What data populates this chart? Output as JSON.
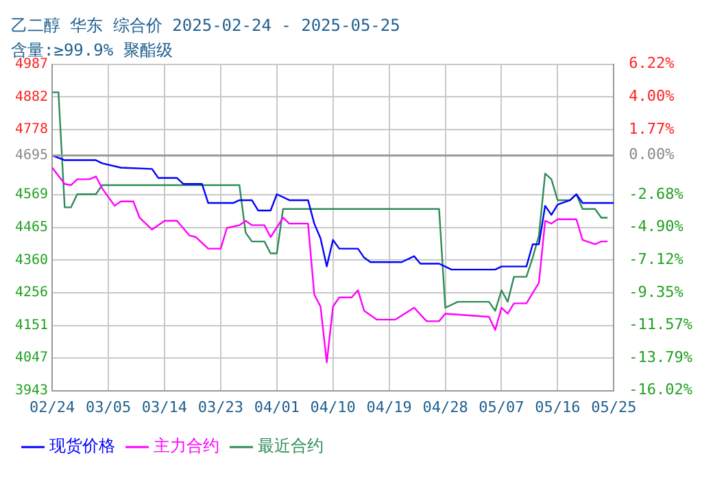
{
  "chart_data": {
    "type": "line",
    "title": "乙二醇 华东 综合价 2025-02-24 - 2025-05-25",
    "subtitle": "含量:≥99.9% 聚酯级",
    "xlim": [
      "2025-02-24",
      "2025-05-25"
    ],
    "xticks": [
      {
        "value": "2025-02-24",
        "label": "02/24"
      },
      {
        "value": "2025-03-05",
        "label": "03/05"
      },
      {
        "value": "2025-03-14",
        "label": "03/14"
      },
      {
        "value": "2025-03-23",
        "label": "03/23"
      },
      {
        "value": "2025-04-01",
        "label": "04/01"
      },
      {
        "value": "2025-04-10",
        "label": "04/10"
      },
      {
        "value": "2025-04-19",
        "label": "04/19"
      },
      {
        "value": "2025-04-28",
        "label": "04/28"
      },
      {
        "value": "2025-05-07",
        "label": "05/07"
      },
      {
        "value": "2025-05-16",
        "label": "05/16"
      },
      {
        "value": "2025-05-25",
        "label": "05/25"
      }
    ],
    "ylim": [
      3943,
      4987
    ],
    "yticks": [
      3943,
      4047,
      4151,
      4256,
      4360,
      4465,
      4569,
      4695,
      4778,
      4882,
      4987
    ],
    "y2lim": [
      -16.02,
      6.22
    ],
    "y2ticks": [
      {
        "value": -16.02,
        "label": "-16.02%"
      },
      {
        "value": -13.79,
        "label": "-13.79%"
      },
      {
        "value": -11.57,
        "label": "-11.57%"
      },
      {
        "value": -9.35,
        "label": "-9.35%"
      },
      {
        "value": -7.12,
        "label": "-7.12%"
      },
      {
        "value": -4.9,
        "label": "-4.90%"
      },
      {
        "value": -2.68,
        "label": "-2.68%"
      },
      {
        "value": 0,
        "label": "0.00%"
      },
      {
        "value": 1.77,
        "label": "1.77%"
      },
      {
        "value": 4,
        "label": "4.00%"
      },
      {
        "value": 6.22,
        "label": "6.22%"
      }
    ],
    "grid": true,
    "legend": "bottom",
    "marker": "none",
    "line_style": "solid",
    "ref_lines": [
      {
        "axis": "y",
        "value": 4695,
        "color": "#999999"
      }
    ],
    "series": [
      {
        "name": "现货价格",
        "color": "#0000ff",
        "x": [
          "2025-02-24",
          "2025-02-26",
          "2025-03-03",
          "2025-03-04",
          "2025-03-07",
          "2025-03-12",
          "2025-03-13",
          "2025-03-16",
          "2025-03-17",
          "2025-03-20",
          "2025-03-21",
          "2025-03-25",
          "2025-03-26",
          "2025-03-28",
          "2025-03-29",
          "2025-03-31",
          "2025-04-01",
          "2025-04-03",
          "2025-04-06",
          "2025-04-07",
          "2025-04-08",
          "2025-04-09",
          "2025-04-10",
          "2025-04-11",
          "2025-04-14",
          "2025-04-15",
          "2025-04-16",
          "2025-04-21",
          "2025-04-23",
          "2025-04-24",
          "2025-04-27",
          "2025-04-29",
          "2025-05-06",
          "2025-05-07",
          "2025-05-11",
          "2025-05-12",
          "2025-05-13",
          "2025-05-14",
          "2025-05-15",
          "2025-05-16",
          "2025-05-18",
          "2025-05-19",
          "2025-05-20",
          "2025-05-25"
        ],
        "values": [
          4695,
          4680,
          4680,
          4670,
          4656,
          4652,
          4623,
          4623,
          4604,
          4604,
          4543,
          4543,
          4552,
          4552,
          4519,
          4519,
          4571,
          4552,
          4552,
          4477,
          4430,
          4340,
          4425,
          4397,
          4397,
          4368,
          4354,
          4354,
          4373,
          4349,
          4349,
          4330,
          4330,
          4340,
          4340,
          4411,
          4411,
          4534,
          4505,
          4538,
          4552,
          4571,
          4543,
          4543
        ]
      },
      {
        "name": "主力合约",
        "color": "#ff00ff",
        "x": [
          "2025-02-24",
          "2025-02-26",
          "2025-02-27",
          "2025-02-28",
          "2025-03-02",
          "2025-03-03",
          "2025-03-04",
          "2025-03-06",
          "2025-03-07",
          "2025-03-09",
          "2025-03-10",
          "2025-03-12",
          "2025-03-14",
          "2025-03-16",
          "2025-03-18",
          "2025-03-19",
          "2025-03-21",
          "2025-03-23",
          "2025-03-24",
          "2025-03-26",
          "2025-03-27",
          "2025-03-28",
          "2025-03-30",
          "2025-03-31",
          "2025-04-02",
          "2025-04-03",
          "2025-04-06",
          "2025-04-07",
          "2025-04-08",
          "2025-04-09",
          "2025-04-10",
          "2025-04-11",
          "2025-04-13",
          "2025-04-14",
          "2025-04-15",
          "2025-04-17",
          "2025-04-20",
          "2025-04-23",
          "2025-04-25",
          "2025-04-27",
          "2025-04-28",
          "2025-05-05",
          "2025-05-06",
          "2025-05-07",
          "2025-05-08",
          "2025-05-09",
          "2025-05-11",
          "2025-05-13",
          "2025-05-14",
          "2025-05-15",
          "2025-05-16",
          "2025-05-19",
          "2025-05-20",
          "2025-05-22",
          "2025-05-23",
          "2025-05-24"
        ],
        "values": [
          4656,
          4604,
          4600,
          4619,
          4619,
          4628,
          4590,
          4534,
          4548,
          4548,
          4496,
          4458,
          4486,
          4486,
          4439,
          4434,
          4397,
          4397,
          4463,
          4472,
          4486,
          4472,
          4472,
          4434,
          4496,
          4477,
          4477,
          4250,
          4212,
          4033,
          4212,
          4241,
          4241,
          4264,
          4198,
          4170,
          4170,
          4208,
          4165,
          4165,
          4189,
          4179,
          4137,
          4208,
          4189,
          4222,
          4222,
          4288,
          4486,
          4477,
          4491,
          4491,
          4425,
          4411,
          4420,
          4420
        ]
      },
      {
        "name": "最近合约",
        "color": "#2e8b57",
        "x": [
          "2025-02-24",
          "2025-02-25",
          "2025-02-26",
          "2025-02-27",
          "2025-02-28",
          "2025-03-03",
          "2025-03-04",
          "2025-03-26",
          "2025-03-27",
          "2025-03-28",
          "2025-03-30",
          "2025-03-31",
          "2025-04-01",
          "2025-04-02",
          "2025-04-27",
          "2025-04-28",
          "2025-04-30",
          "2025-05-05",
          "2025-05-06",
          "2025-05-07",
          "2025-05-08",
          "2025-05-09",
          "2025-05-11",
          "2025-05-12",
          "2025-05-13",
          "2025-05-14",
          "2025-05-15",
          "2025-05-16",
          "2025-05-18",
          "2025-05-19",
          "2025-05-20",
          "2025-05-22",
          "2025-05-23",
          "2025-05-24"
        ],
        "values": [
          4897,
          4897,
          4529,
          4529,
          4571,
          4571,
          4600,
          4600,
          4448,
          4420,
          4420,
          4382,
          4382,
          4524,
          4524,
          4208,
          4227,
          4227,
          4198,
          4264,
          4227,
          4307,
          4307,
          4368,
          4439,
          4637,
          4619,
          4552,
          4552,
          4571,
          4524,
          4524,
          4496,
          4496
        ]
      }
    ]
  }
}
